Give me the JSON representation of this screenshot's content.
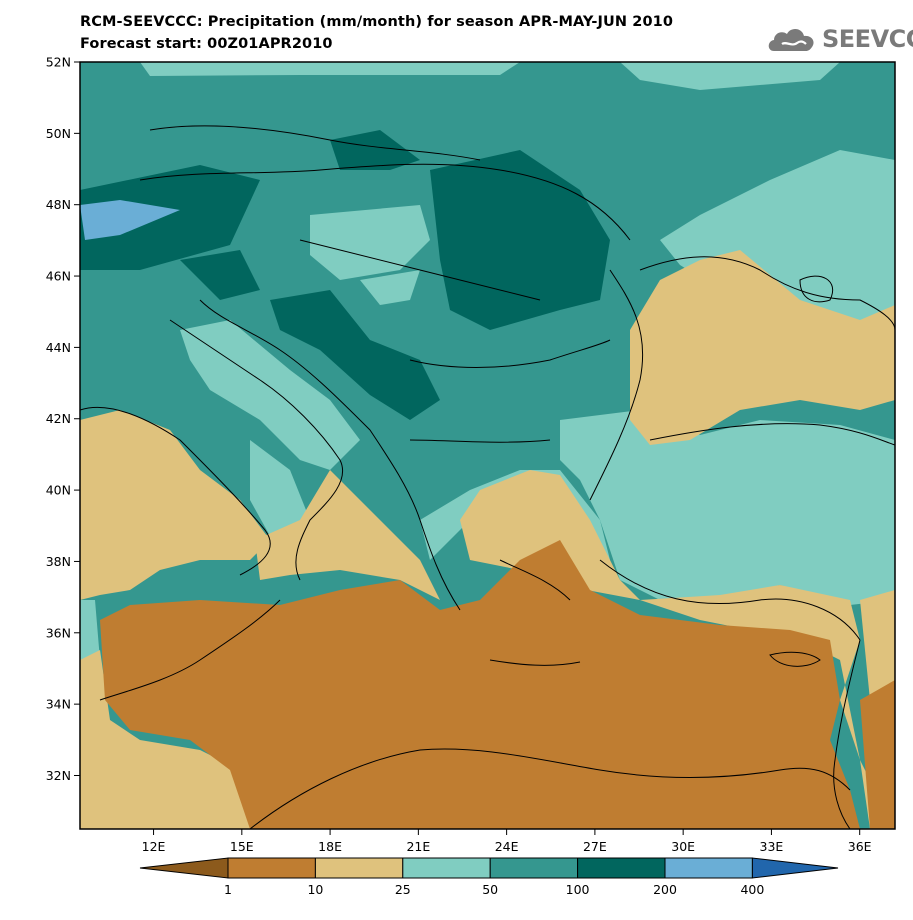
{
  "header": {
    "title_line1": "RCM-SEEVCCC: Precipitation (mm/month) for season APR-MAY-JUN 2010",
    "title_line2": "Forecast start: 00Z01APR2010"
  },
  "logo": {
    "text": "SEEVCCC",
    "icon": "cloud-icon"
  },
  "map": {
    "lat_labels": [
      "52N",
      "50N",
      "48N",
      "46N",
      "44N",
      "42N",
      "40N",
      "38N",
      "36N",
      "34N",
      "32N"
    ],
    "lon_labels": [
      "12E",
      "15E",
      "18E",
      "21E",
      "24E",
      "27E",
      "30E",
      "33E",
      "36E"
    ],
    "lat_values": [
      52,
      50,
      48,
      46,
      44,
      42,
      40,
      38,
      36,
      34,
      32
    ],
    "lon_values": [
      12,
      15,
      18,
      21,
      24,
      27,
      30,
      33,
      36
    ]
  },
  "colorbar": {
    "tick_labels": [
      "1",
      "10",
      "25",
      "50",
      "100",
      "200",
      "400"
    ],
    "colors": [
      "#8c5a1c",
      "#bf7d31",
      "#dfc27d",
      "#80cdc1",
      "#35978f",
      "#01665e",
      "#6aaed6",
      "#2166ac"
    ]
  }
}
